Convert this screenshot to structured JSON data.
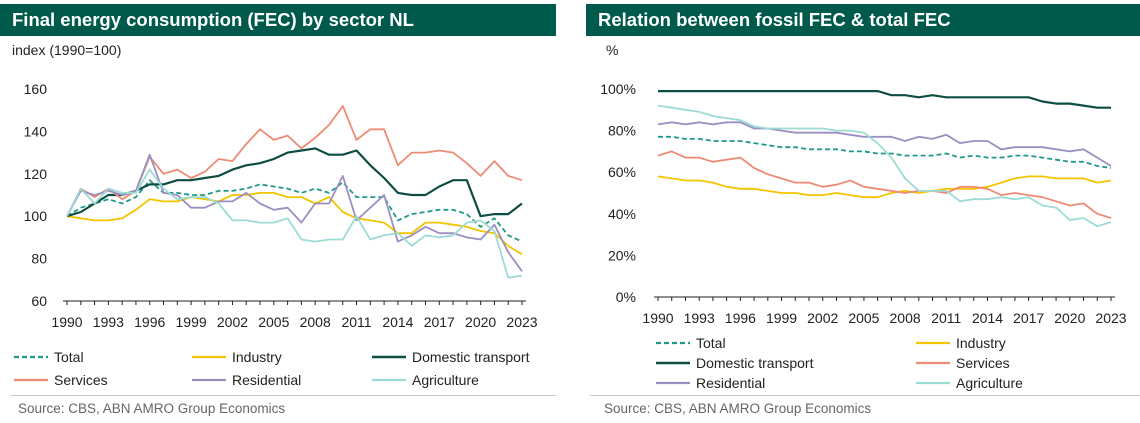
{
  "colors": {
    "Total": "#1f9a8a",
    "Industry": "#f5c400",
    "Domestic transport": "#0e4d42",
    "Services": "#ee8b74",
    "Residential": "#9b8fc2",
    "Agriculture": "#9ddbd6"
  },
  "chart_data": [
    {
      "type": "line",
      "title": "Final energy consumption (FEC) by sector NL",
      "ylabel": "index (1990=100)",
      "ylim": [
        60,
        160
      ],
      "yticks": [
        60,
        80,
        100,
        120,
        140,
        160
      ],
      "xticks": [
        "1990",
        "1993",
        "1996",
        "1999",
        "2002",
        "2005",
        "2008",
        "2011",
        "2014",
        "2017",
        "2020",
        "2023"
      ],
      "x": [
        1990,
        1991,
        1992,
        1993,
        1994,
        1995,
        1996,
        1997,
        1998,
        1999,
        2000,
        2001,
        2002,
        2003,
        2004,
        2005,
        2006,
        2007,
        2008,
        2009,
        2010,
        2011,
        2012,
        2013,
        2014,
        2015,
        2016,
        2017,
        2018,
        2019,
        2020,
        2021,
        2022,
        2023
      ],
      "series": [
        {
          "name": "Total",
          "dashed": true,
          "values": [
            100,
            104,
            106,
            108,
            106,
            109,
            117,
            111,
            111,
            110,
            110,
            112,
            112,
            113,
            115,
            114,
            113,
            111,
            113,
            111,
            116,
            109,
            109,
            109,
            98,
            101,
            102,
            103,
            103,
            101,
            95,
            99,
            91,
            88
          ]
        },
        {
          "name": "Industry",
          "values": [
            100,
            99,
            98,
            98,
            99,
            103,
            108,
            107,
            107,
            109,
            108,
            107,
            110,
            110,
            111,
            111,
            109,
            109,
            106,
            109,
            102,
            99,
            98,
            97,
            92,
            92,
            97,
            97,
            96,
            95,
            93,
            92,
            86,
            82
          ]
        },
        {
          "name": "Domestic transport",
          "values": [
            100,
            102,
            106,
            110,
            110,
            112,
            115,
            115,
            117,
            117,
            118,
            119,
            122,
            124,
            125,
            127,
            130,
            131,
            132,
            129,
            129,
            131,
            124,
            118,
            111,
            110,
            110,
            114,
            117,
            117,
            100,
            101,
            101,
            106
          ]
        },
        {
          "name": "Services",
          "values": [
            100,
            113,
            109,
            113,
            108,
            112,
            128,
            120,
            122,
            118,
            121,
            127,
            126,
            134,
            141,
            136,
            138,
            132,
            137,
            143,
            152,
            136,
            141,
            141,
            124,
            130,
            130,
            131,
            130,
            125,
            119,
            126,
            119,
            117
          ]
        },
        {
          "name": "Residential",
          "values": [
            100,
            112,
            110,
            112,
            110,
            112,
            129,
            111,
            110,
            104,
            104,
            107,
            107,
            111,
            106,
            103,
            104,
            97,
            106,
            106,
            119,
            98,
            104,
            110,
            88,
            91,
            95,
            92,
            92,
            90,
            89,
            96,
            83,
            74
          ]
        },
        {
          "name": "Agriculture",
          "values": [
            100,
            113,
            106,
            113,
            111,
            111,
            122,
            113,
            108,
            109,
            109,
            106,
            98,
            98,
            97,
            97,
            99,
            89,
            88,
            89,
            89,
            100,
            89,
            91,
            92,
            86,
            91,
            90,
            91,
            97,
            98,
            93,
            71,
            72
          ]
        }
      ],
      "legend": [
        [
          "Total",
          "Industry",
          "Domestic transport"
        ],
        [
          "Services",
          "Residential",
          "Agriculture"
        ]
      ],
      "source": "Source: CBS, ABN AMRO Group Economics"
    },
    {
      "type": "line",
      "title": "Relation between fossil FEC & total FEC",
      "ylabel": "%",
      "ylim": [
        0,
        100
      ],
      "yticks": [
        0,
        20,
        40,
        60,
        80,
        100
      ],
      "ytick_labels": [
        "0%",
        "20%",
        "40%",
        "60%",
        "80%",
        "100%"
      ],
      "xticks": [
        "1990",
        "1993",
        "1996",
        "1999",
        "2002",
        "2005",
        "2008",
        "2011",
        "2014",
        "2017",
        "2020",
        "2023"
      ],
      "x": [
        1990,
        1991,
        1992,
        1993,
        1994,
        1995,
        1996,
        1997,
        1998,
        1999,
        2000,
        2001,
        2002,
        2003,
        2004,
        2005,
        2006,
        2007,
        2008,
        2009,
        2010,
        2011,
        2012,
        2013,
        2014,
        2015,
        2016,
        2017,
        2018,
        2019,
        2020,
        2021,
        2022,
        2023
      ],
      "series": [
        {
          "name": "Total",
          "dashed": true,
          "values": [
            77,
            77,
            76,
            76,
            75,
            75,
            75,
            74,
            73,
            72,
            72,
            71,
            71,
            71,
            70,
            70,
            69,
            69,
            68,
            68,
            68,
            69,
            67,
            68,
            67,
            67,
            68,
            68,
            67,
            66,
            65,
            65,
            63,
            62
          ]
        },
        {
          "name": "Industry",
          "values": [
            58,
            57,
            56,
            56,
            55,
            53,
            52,
            52,
            51,
            50,
            50,
            49,
            49,
            50,
            49,
            48,
            48,
            50,
            51,
            50,
            51,
            52,
            52,
            52,
            53,
            55,
            57,
            58,
            58,
            57,
            57,
            57,
            55,
            56
          ]
        },
        {
          "name": "Domestic transport",
          "values": [
            99,
            99,
            99,
            99,
            99,
            99,
            99,
            99,
            99,
            99,
            99,
            99,
            99,
            99,
            99,
            99,
            99,
            97,
            97,
            96,
            97,
            96,
            96,
            96,
            96,
            96,
            96,
            96,
            94,
            93,
            93,
            92,
            91,
            91
          ]
        },
        {
          "name": "Services",
          "values": [
            68,
            70,
            67,
            67,
            65,
            66,
            67,
            62,
            59,
            57,
            55,
            55,
            53,
            54,
            56,
            53,
            52,
            51,
            50,
            51,
            51,
            50,
            53,
            53,
            52,
            49,
            50,
            49,
            48,
            46,
            44,
            45,
            40,
            38
          ]
        },
        {
          "name": "Residential",
          "values": [
            83,
            84,
            83,
            84,
            83,
            84,
            84,
            81,
            81,
            80,
            79,
            79,
            79,
            79,
            78,
            77,
            77,
            77,
            75,
            77,
            76,
            78,
            74,
            75,
            75,
            71,
            72,
            72,
            72,
            71,
            70,
            71,
            67,
            63
          ]
        },
        {
          "name": "Agriculture",
          "values": [
            92,
            91,
            90,
            89,
            87,
            86,
            85,
            82,
            81,
            81,
            81,
            81,
            81,
            80,
            80,
            79,
            74,
            67,
            57,
            51,
            51,
            51,
            46,
            47,
            47,
            48,
            47,
            48,
            44,
            43,
            37,
            38,
            34,
            36
          ]
        }
      ],
      "legend": [
        [
          "Total",
          "Industry"
        ],
        [
          "Domestic transport",
          "Services"
        ],
        [
          "Residential",
          "Agriculture"
        ]
      ],
      "source": "Source: CBS, ABN AMRO Group Economics"
    }
  ]
}
